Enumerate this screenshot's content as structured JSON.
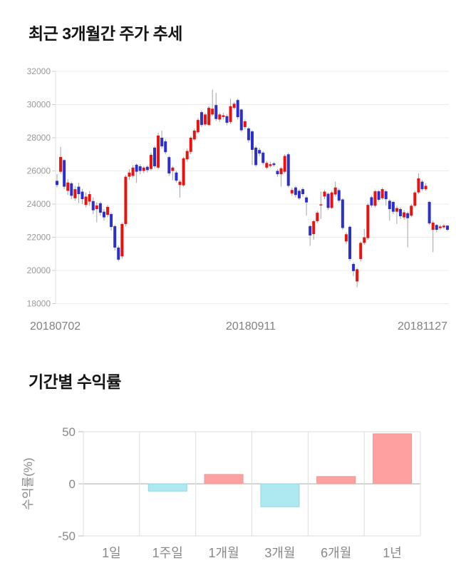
{
  "sections": {
    "price_trend_title": "최근 3개월간 주가 추세",
    "period_returns_title": "기간별 수익률"
  },
  "chart_data": [
    {
      "type": "candlestick",
      "title": "최근 3개월간 주가 추세",
      "x_axis_labels": [
        "20180702",
        "20180911",
        "20181127"
      ],
      "y_ticks": [
        32000,
        30000,
        28000,
        26000,
        24000,
        22000,
        20000,
        18000
      ],
      "ylim": [
        18000,
        32000
      ],
      "grid": "horizontal",
      "legend": "none",
      "colors": {
        "up": "#e8120e",
        "down": "#2b2fd0",
        "wick": "#a3a3a3",
        "grid": "#ececec",
        "axis_line": "#e0e0e0",
        "axis_text": "#999999",
        "x_label_text": "#808080"
      },
      "candles_format": [
        "open",
        "close",
        "high",
        "low"
      ],
      "candles": [
        [
          25400,
          25150,
          25800,
          25000
        ],
        [
          25950,
          26840,
          27450,
          25850
        ],
        [
          26650,
          25050,
          26700,
          24900
        ],
        [
          24800,
          25300,
          25500,
          24550
        ],
        [
          25250,
          24500,
          25350,
          24300
        ],
        [
          24350,
          24900,
          25100,
          24200
        ],
        [
          25050,
          24600,
          25300,
          24050
        ],
        [
          24750,
          24300,
          24900,
          24000
        ],
        [
          23950,
          24450,
          24700,
          23800
        ],
        [
          24150,
          24600,
          24800,
          23900
        ],
        [
          24180,
          23630,
          24400,
          23400
        ],
        [
          23700,
          23920,
          24100,
          22900
        ],
        [
          24050,
          23480,
          24150,
          23300
        ],
        [
          23540,
          23200,
          23700,
          23000
        ],
        [
          23350,
          23830,
          23950,
          23200
        ],
        [
          23400,
          22620,
          23500,
          22400
        ],
        [
          22670,
          21380,
          22750,
          21200
        ],
        [
          21380,
          20650,
          21500,
          20550
        ],
        [
          20850,
          22800,
          22900,
          20700
        ],
        [
          22800,
          25650,
          25750,
          22650
        ],
        [
          25650,
          25900,
          26100,
          25450
        ],
        [
          25700,
          26200,
          26350,
          25600
        ],
        [
          26370,
          25950,
          26450,
          25270
        ],
        [
          26280,
          26000,
          26400,
          25800
        ],
        [
          26000,
          26200,
          26300,
          25850
        ],
        [
          26250,
          26050,
          26350,
          25900
        ],
        [
          26120,
          26970,
          27100,
          26000
        ],
        [
          27400,
          26280,
          27500,
          26150
        ],
        [
          26200,
          28130,
          28300,
          26100
        ],
        [
          28000,
          27480,
          28430,
          27350
        ],
        [
          27780,
          27130,
          27900,
          27000
        ],
        [
          26830,
          25850,
          26900,
          25700
        ],
        [
          26000,
          26200,
          26300,
          25450
        ],
        [
          25900,
          25420,
          26000,
          25300
        ],
        [
          25150,
          25350,
          25450,
          24400
        ],
        [
          25130,
          26760,
          26850,
          25050
        ],
        [
          26700,
          27200,
          27350,
          26550
        ],
        [
          27150,
          28000,
          28100,
          27000
        ],
        [
          27900,
          28430,
          28550,
          27800
        ],
        [
          28340,
          29070,
          29200,
          28250
        ],
        [
          29540,
          28770,
          29650,
          28650
        ],
        [
          28800,
          29400,
          29500,
          28700
        ],
        [
          28770,
          29800,
          29900,
          28700
        ],
        [
          29400,
          29750,
          30900,
          29300
        ],
        [
          29970,
          29130,
          30700,
          29000
        ],
        [
          29100,
          29400,
          29500,
          28950
        ],
        [
          29250,
          29350,
          29500,
          29100
        ],
        [
          29300,
          28900,
          29400,
          28750
        ],
        [
          28950,
          29900,
          30350,
          28850
        ],
        [
          29800,
          30050,
          30150,
          29700
        ],
        [
          30270,
          29240,
          30350,
          29100
        ],
        [
          29700,
          28450,
          29750,
          28350
        ],
        [
          28640,
          28990,
          29100,
          28500
        ],
        [
          28560,
          27850,
          28650,
          27700
        ],
        [
          28380,
          27270,
          28450,
          26350
        ],
        [
          27400,
          26350,
          27500,
          26250
        ],
        [
          27260,
          27050,
          27400,
          26900
        ],
        [
          27100,
          26480,
          27200,
          26350
        ],
        [
          26200,
          26480,
          26600,
          26100
        ],
        [
          26300,
          26400,
          26550,
          26200
        ],
        [
          26450,
          26350,
          26550,
          26250
        ],
        [
          26000,
          25800,
          26100,
          25650
        ],
        [
          25800,
          26150,
          26250,
          25050
        ],
        [
          25950,
          26900,
          27000,
          25850
        ],
        [
          27000,
          25100,
          27100,
          25000
        ],
        [
          24650,
          24850,
          25000,
          24500
        ],
        [
          25000,
          24550,
          25100,
          24400
        ],
        [
          24800,
          24350,
          24900,
          24250
        ],
        [
          24900,
          24600,
          25000,
          24450
        ],
        [
          24400,
          24100,
          24500,
          23300
        ],
        [
          22670,
          22110,
          22750,
          21480
        ],
        [
          22190,
          22970,
          23050,
          21850
        ],
        [
          22970,
          23480,
          23600,
          22850
        ],
        [
          23920,
          23980,
          24770,
          23100
        ],
        [
          24460,
          24750,
          24850,
          24300
        ],
        [
          24620,
          23770,
          24700,
          23650
        ],
        [
          23770,
          24700,
          24800,
          23700
        ],
        [
          24580,
          25000,
          25350,
          24450
        ],
        [
          24840,
          24210,
          24950,
          24100
        ],
        [
          24280,
          22560,
          24350,
          22450
        ],
        [
          21750,
          22180,
          22300,
          21600
        ],
        [
          22630,
          20690,
          22700,
          20550
        ],
        [
          20390,
          19960,
          20500,
          19660
        ],
        [
          19340,
          20070,
          20150,
          18990
        ],
        [
          20690,
          21660,
          21750,
          20550
        ],
        [
          21660,
          22000,
          22500,
          21550
        ],
        [
          21950,
          23950,
          24050,
          21850
        ],
        [
          24410,
          23920,
          24500,
          23800
        ],
        [
          23900,
          24770,
          24850,
          23800
        ],
        [
          24770,
          24260,
          24850,
          24150
        ],
        [
          24350,
          24900,
          25000,
          24250
        ],
        [
          24770,
          24300,
          24850,
          23900
        ],
        [
          24200,
          23700,
          24300,
          23000
        ],
        [
          24130,
          23540,
          24200,
          23400
        ],
        [
          23540,
          23760,
          23900,
          22800
        ],
        [
          23700,
          23270,
          23800,
          23100
        ],
        [
          23200,
          23500,
          23650,
          23050
        ],
        [
          23450,
          23150,
          23550,
          21400
        ],
        [
          23300,
          23900,
          24000,
          23200
        ],
        [
          23900,
          24700,
          24800,
          23800
        ],
        [
          24700,
          25550,
          25850,
          24600
        ],
        [
          25350,
          24900,
          25450,
          24800
        ],
        [
          24900,
          25100,
          25250,
          24800
        ],
        [
          24130,
          22840,
          24200,
          22750
        ],
        [
          22450,
          22880,
          23000,
          21100
        ],
        [
          22740,
          22450,
          22800,
          22300
        ],
        [
          22550,
          22650,
          22750,
          22450
        ],
        [
          22600,
          22700,
          22800,
          22500
        ],
        [
          22700,
          22450,
          22750,
          22350
        ]
      ]
    },
    {
      "type": "bar",
      "title": "기간별 수익률",
      "ylabel": "수익률(%)",
      "categories": [
        "1일",
        "1주일",
        "1개월",
        "3개월",
        "6개월",
        "1년"
      ],
      "values": [
        0,
        -7,
        9,
        -22,
        7,
        48
      ],
      "y_ticks": [
        50,
        0,
        -50
      ],
      "ylim": [
        -50,
        50
      ],
      "grid": "on",
      "legend": "none",
      "colors": {
        "positive": "#ffa0a0",
        "positive_border": "#f09494",
        "negative": "#aee8f0",
        "negative_border": "#8fd6e4",
        "grid": "#dddddd",
        "zero_line": "#aaaaaa",
        "axis_text": "#888888"
      }
    }
  ]
}
